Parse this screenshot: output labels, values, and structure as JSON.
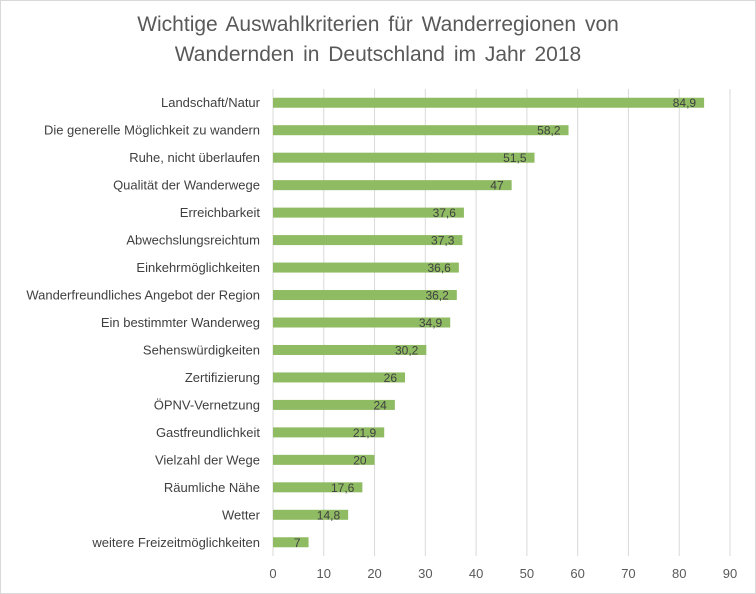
{
  "chart_data": {
    "type": "bar",
    "orientation": "horizontal",
    "title_line1": "Wichtige Auswahlkriterien für Wanderregionen von",
    "title_line2": "Wandernden in Deutschland im Jahr 2018",
    "categories": [
      "Landschaft/Natur",
      "Die generelle Möglichkeit zu wandern",
      "Ruhe, nicht überlaufen",
      "Qualität der Wanderwege",
      "Erreichbarkeit",
      "Abwechslungsreichtum",
      "Einkehrmöglichkeiten",
      "Wanderfreundliches Angebot der Region",
      "Ein bestimmter Wanderweg",
      "Sehenswürdigkeiten",
      "Zertifizierung",
      "ÖPNV-Vernetzung",
      "Gastfreundlichkeit",
      "Vielzahl der Wege",
      "Räumliche Nähe",
      "Wetter",
      "weitere Freizeitmöglichkeiten"
    ],
    "values": [
      84.9,
      58.2,
      51.5,
      47,
      37.6,
      37.3,
      36.6,
      36.2,
      34.9,
      30.2,
      26,
      24,
      21.9,
      20,
      17.6,
      14.8,
      7
    ],
    "value_labels": [
      "84,9",
      "58,2",
      "51,5",
      "47",
      "37,6",
      "37,3",
      "36,6",
      "36,2",
      "34,9",
      "30,2",
      "26",
      "24",
      "21,9",
      "20",
      "17,6",
      "14,8",
      "7"
    ],
    "xlim": [
      0,
      90
    ],
    "xticks": [
      0,
      10,
      20,
      30,
      40,
      50,
      60,
      70,
      80,
      90
    ],
    "xtick_labels": [
      "0",
      "10",
      "20",
      "30",
      "40",
      "50",
      "60",
      "70",
      "80",
      "90"
    ],
    "grid": "vertical",
    "legend": "none",
    "colors": {
      "bar": "#8fbb62",
      "grid": "#d9d9d9",
      "text": "#404040",
      "title": "#595959"
    }
  }
}
